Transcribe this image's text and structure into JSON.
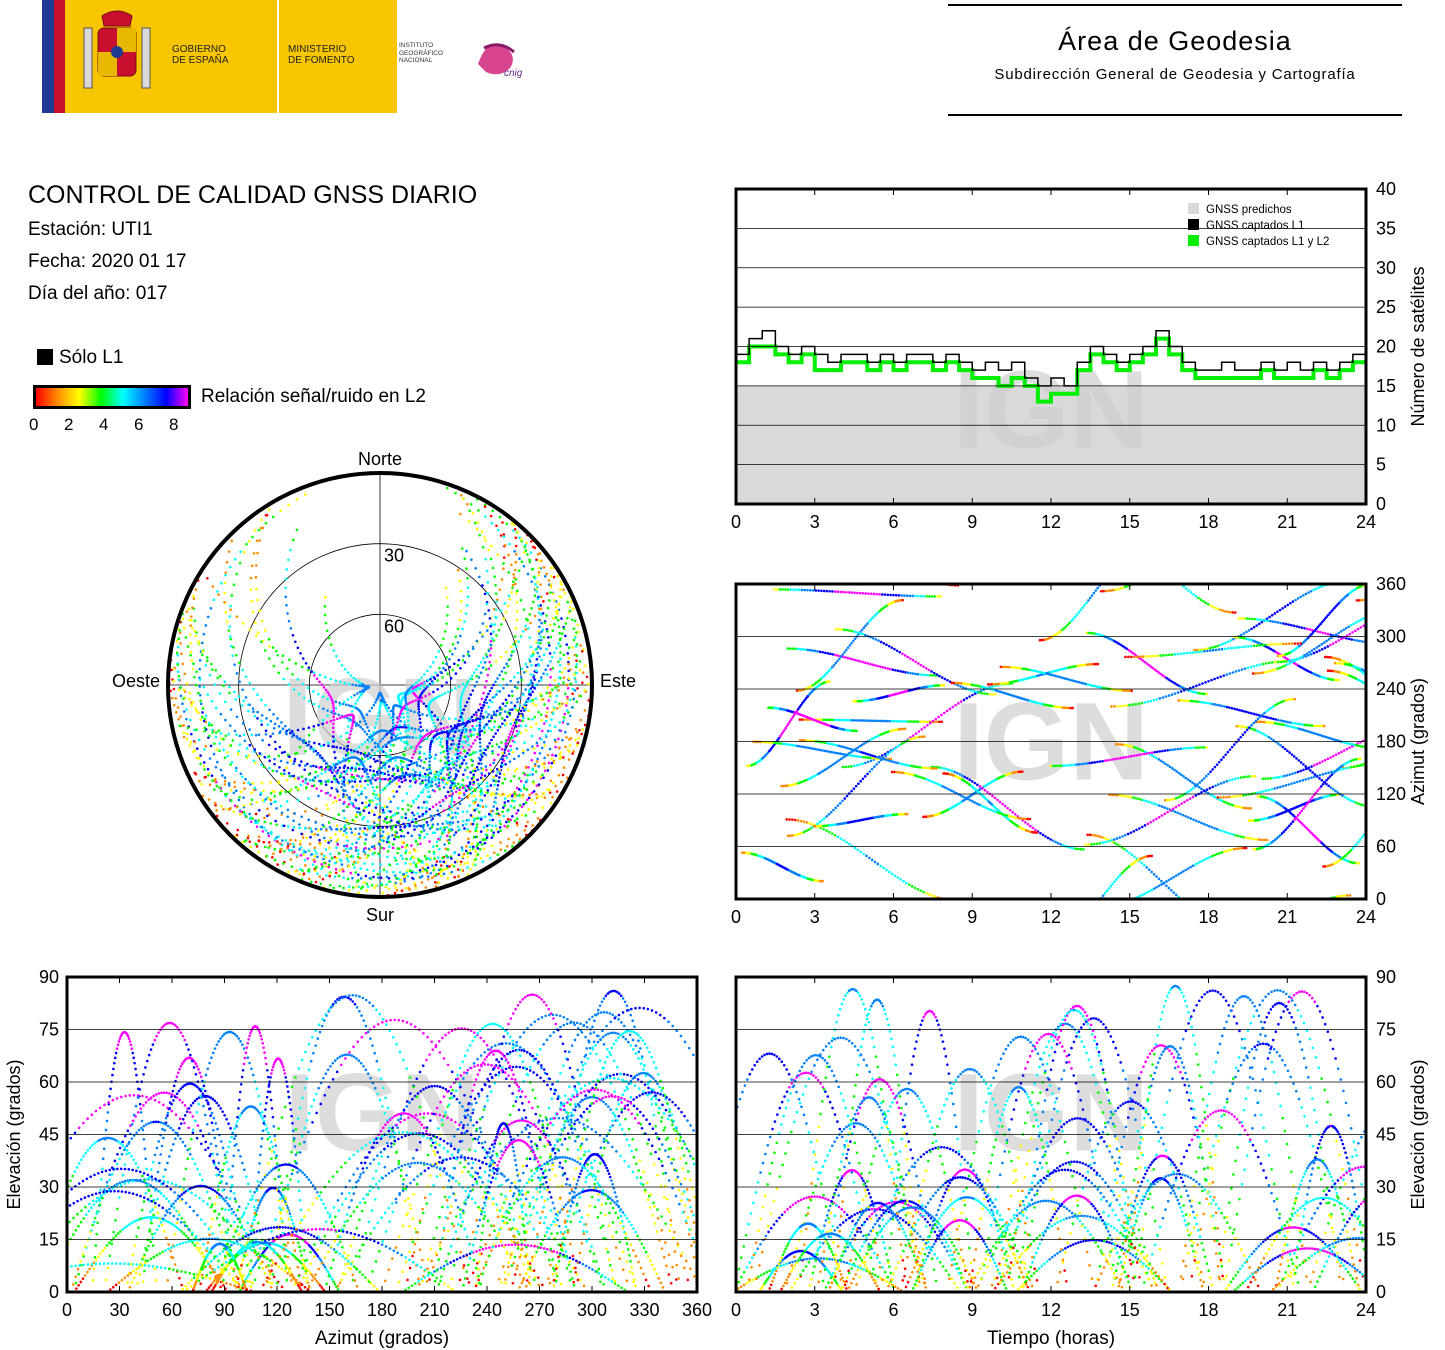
{
  "header": {
    "gov_line1": "GOBIERNO",
    "gov_line2": "DE ESPAÑA",
    "ministry_line1": "MINISTERIO",
    "ministry_line2": "DE FOMENTO",
    "ign_line1": "INSTITUTO",
    "ign_line2": "GEOGRÁFICO",
    "ign_line3": "NACIONAL",
    "cnig": "cnig",
    "area_title": "Área de Geodesia",
    "area_subtitle": "Subdirección General de Geodesia y Cartografía"
  },
  "report": {
    "title": "CONTROL DE CALIDAD GNSS DIARIO",
    "station": "Estación: UTI1",
    "date": "Fecha: 2020 01 17",
    "doy": "Día del año: 017"
  },
  "legend": {
    "l1_only": "Sólo L1",
    "snr_label": "Relación señal/ruido en L2",
    "scale_ticks": [
      "0",
      "2",
      "4",
      "6",
      "8"
    ],
    "scale_colors": [
      "#ff0000",
      "#ff8c00",
      "#ffff00",
      "#00ff00",
      "#00ffff",
      "#0080ff",
      "#0000ff",
      "#ff00ff"
    ]
  },
  "watermark": "IGN",
  "colors": {
    "predicted": "#d9d9d9",
    "l1": "#000000",
    "l1l2": "#00ee00"
  },
  "chart_data": [
    {
      "type": "area",
      "id": "satellite-count",
      "ylabel": "Número de satélites",
      "xlim": [
        0,
        24
      ],
      "ylim": [
        0,
        40
      ],
      "x_ticks": [
        "0",
        "3",
        "6",
        "9",
        "12",
        "15",
        "18",
        "21",
        "24"
      ],
      "y_ticks": [
        "0",
        "5",
        "10",
        "15",
        "20",
        "25",
        "30",
        "35",
        "40"
      ],
      "grid": true,
      "legend_position": "top-right",
      "legend": [
        "GNSS predichos",
        "GNSS captados L1",
        "GNSS captados L1 y L2"
      ],
      "x": [
        0,
        0.5,
        1,
        1.5,
        2,
        2.5,
        3,
        3.5,
        4,
        4.5,
        5,
        5.5,
        6,
        6.5,
        7,
        7.5,
        8,
        8.5,
        9,
        9.5,
        10,
        10.5,
        11,
        11.5,
        12,
        12.5,
        13,
        13.5,
        14,
        14.5,
        15,
        15.5,
        16,
        16.5,
        17,
        17.5,
        18,
        18.5,
        19,
        19.5,
        20,
        20.5,
        21,
        21.5,
        22,
        22.5,
        23,
        23.5,
        24
      ],
      "series": [
        {
          "name": "GNSS predichos",
          "values": [
            15,
            15,
            15,
            15,
            15,
            15,
            15,
            15,
            15,
            15,
            15,
            15,
            15,
            15,
            15,
            15,
            15,
            15,
            15,
            15,
            15,
            15,
            15,
            15,
            15,
            15,
            15,
            15,
            15,
            15,
            15,
            15,
            15,
            15,
            15,
            15,
            15,
            15,
            15,
            15,
            15,
            15,
            15,
            15,
            15,
            15,
            15,
            15,
            15
          ]
        },
        {
          "name": "GNSS captados L1",
          "values": [
            19,
            21,
            22,
            20,
            19,
            20,
            19,
            18,
            19,
            19,
            18,
            19,
            18,
            19,
            19,
            18,
            19,
            18,
            17,
            18,
            17,
            18,
            16,
            15,
            16,
            15,
            18,
            20,
            19,
            18,
            19,
            20,
            22,
            20,
            18,
            17,
            17,
            18,
            17,
            17,
            18,
            17,
            18,
            17,
            18,
            17,
            18,
            19,
            19
          ]
        },
        {
          "name": "GNSS captados L1 y L2",
          "values": [
            18,
            20,
            20,
            19,
            18,
            19,
            17,
            17,
            18,
            18,
            17,
            18,
            17,
            18,
            18,
            17,
            18,
            17,
            16,
            16,
            15,
            16,
            15,
            13,
            14,
            14,
            17,
            19,
            18,
            17,
            18,
            19,
            21,
            19,
            17,
            16,
            16,
            16,
            16,
            16,
            17,
            16,
            16,
            16,
            17,
            16,
            17,
            18,
            18
          ]
        }
      ]
    },
    {
      "type": "scatter",
      "id": "sky-plot",
      "directions": [
        "Norte",
        "Sur",
        "Oeste",
        "Este"
      ],
      "ring_labels": [
        "30",
        "60"
      ]
    },
    {
      "type": "scatter",
      "id": "azimuth-vs-time",
      "ylabel": "Azimut (grados)",
      "xlim": [
        0,
        24
      ],
      "ylim": [
        0,
        360
      ],
      "x_ticks": [
        "0",
        "3",
        "6",
        "9",
        "12",
        "15",
        "18",
        "21",
        "24"
      ],
      "y_ticks": [
        "0",
        "60",
        "120",
        "180",
        "240",
        "300",
        "360"
      ],
      "grid": true
    },
    {
      "type": "scatter",
      "id": "elevation-vs-azimuth",
      "xlabel": "Azimut (grados)",
      "ylabel": "Elevación (grados)",
      "xlim": [
        0,
        360
      ],
      "ylim": [
        0,
        90
      ],
      "x_ticks": [
        "0",
        "30",
        "60",
        "90",
        "120",
        "150",
        "180",
        "210",
        "240",
        "270",
        "300",
        "330",
        "360"
      ],
      "y_ticks": [
        "0",
        "15",
        "30",
        "45",
        "60",
        "75",
        "90"
      ],
      "grid": true
    },
    {
      "type": "scatter",
      "id": "elevation-vs-time",
      "xlabel": "Tiempo (horas)",
      "ylabel": "Elevación (grados)",
      "xlim": [
        0,
        24
      ],
      "ylim": [
        0,
        90
      ],
      "x_ticks": [
        "0",
        "3",
        "6",
        "9",
        "12",
        "15",
        "18",
        "21",
        "24"
      ],
      "y_ticks": [
        "0",
        "15",
        "30",
        "45",
        "60",
        "75",
        "90"
      ],
      "grid": true
    }
  ]
}
